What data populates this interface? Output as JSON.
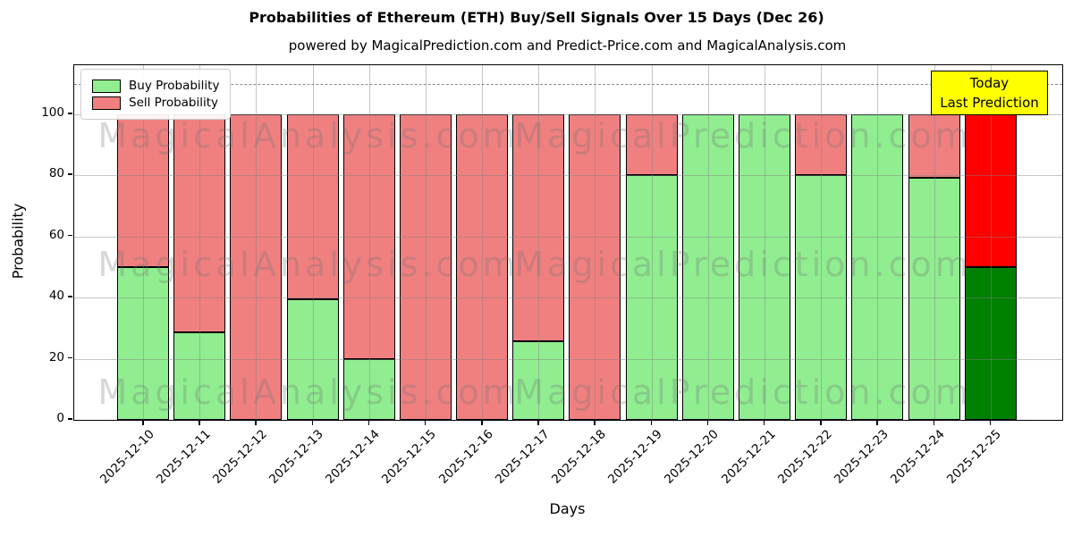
{
  "title": "Probabilities of Ethereum (ETH) Buy/Sell Signals Over 15 Days (Dec 26)",
  "subtitle": "powered by MagicalPrediction.com and Predict-Price.com and MagicalAnalysis.com",
  "annotation": {
    "line1": "Today",
    "line2": "Last Prediction",
    "bg": "#ffff00"
  },
  "watermarks": {
    "left": "MagicalAnalysis.com",
    "right": "MagicalPrediction.com"
  },
  "chart_data": {
    "type": "bar",
    "stacked": true,
    "title": "Probabilities of Ethereum (ETH) Buy/Sell Signals Over 15 Days (Dec 26)",
    "xlabel": "Days",
    "ylabel": "Probability",
    "categories": [
      "2025-12-10",
      "2025-12-11",
      "2025-12-12",
      "2025-12-13",
      "2025-12-14",
      "2025-12-15",
      "2025-12-16",
      "2025-12-17",
      "2025-12-18",
      "2025-12-19",
      "2025-12-20",
      "2025-12-21",
      "2025-12-22",
      "2025-12-23",
      "2025-12-24",
      "2025-12-25"
    ],
    "series": [
      {
        "name": "Buy Probability",
        "color": "#90ee90",
        "values": [
          50,
          28.5,
          0,
          39.5,
          20,
          0,
          0,
          25.7,
          0,
          80,
          100,
          100,
          80,
          100,
          79.3,
          50
        ]
      },
      {
        "name": "Sell Probability",
        "color": "#f08080",
        "values": [
          50,
          71.5,
          100,
          60.5,
          80,
          100,
          100,
          74.3,
          100,
          20,
          0,
          0,
          20,
          0,
          20.7,
          50
        ]
      }
    ],
    "last_bar_colors": {
      "buy": "#008000",
      "sell": "#ff0000"
    },
    "yticks": [
      0,
      20,
      40,
      60,
      80,
      100
    ],
    "ylim": [
      0,
      116
    ],
    "dashed_line_y": 110,
    "grid": true,
    "legend_position": "upper left"
  }
}
